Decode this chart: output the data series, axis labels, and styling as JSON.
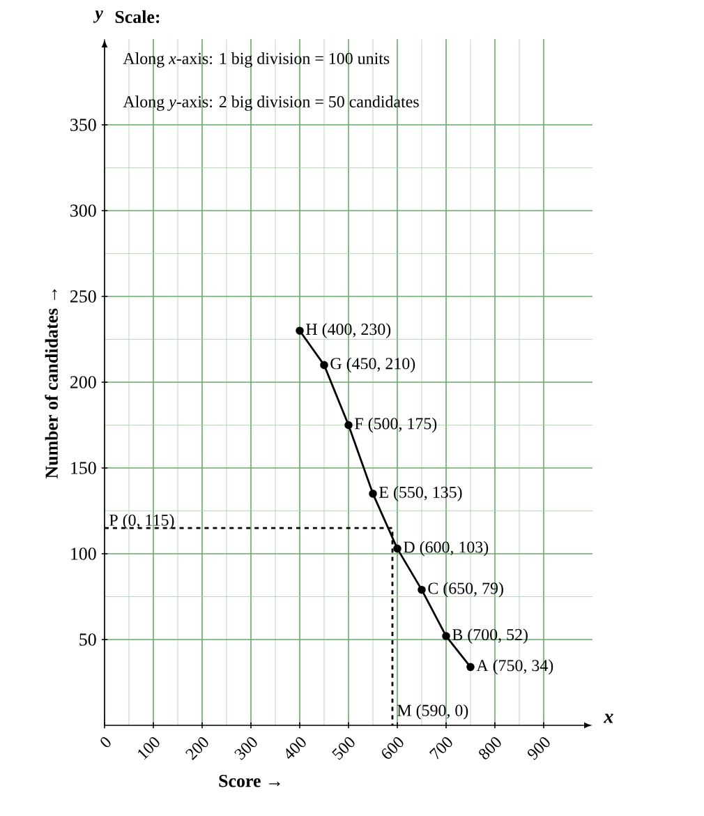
{
  "chart_data": {
    "type": "line",
    "xlabel": "**Score** →",
    "ylabel": "**Number of candidates** →",
    "xlim": [
      0,
      1000
    ],
    "ylim": [
      0,
      400
    ],
    "xticks": [
      0,
      100,
      200,
      300,
      400,
      500,
      600,
      700,
      800,
      900
    ],
    "yticks": [
      50,
      100,
      150,
      200,
      250,
      300,
      350
    ],
    "grid": true,
    "series": [
      {
        "x": [
          400,
          450,
          500,
          550,
          600,
          650,
          700,
          750
        ],
        "values": [
          230,
          210,
          175,
          135,
          103,
          79,
          52,
          34
        ],
        "color": "#000000",
        "marker": "circle",
        "line_style": "solid"
      },
      {
        "x": [
          0,
          590,
          590
        ],
        "values": [
          115,
          115,
          0
        ],
        "color": "#000000",
        "marker": "none",
        "line_style": "dashed"
      }
    ],
    "annotations": [
      "y",
      "x",
      "**Scale:**",
      "Along *x*-axis: 1 big division = 100 units",
      "Along *y*-axis: 2 big division = 50 candidates",
      {
        "text": "H (400, 230)",
        "x": 400,
        "y": 230
      },
      {
        "text": "G (450, 210)",
        "x": 450,
        "y": 210
      },
      {
        "text": "F (500, 175)",
        "x": 500,
        "y": 175
      },
      {
        "text": "E (550, 135)",
        "x": 550,
        "y": 135
      },
      {
        "text": "D (600, 103)",
        "x": 600,
        "y": 103
      },
      {
        "text": "C (650, 79)",
        "x": 650,
        "y": 79
      },
      {
        "text": "B (700, 52)",
        "x": 700,
        "y": 52
      },
      {
        "text": "A (750, 34)",
        "x": 750,
        "y": 34
      },
      {
        "text": "P (0, 115)",
        "x": 0,
        "y": 115
      },
      {
        "text": "M (590, 0)",
        "x": 590,
        "y": 0
      }
    ]
  }
}
